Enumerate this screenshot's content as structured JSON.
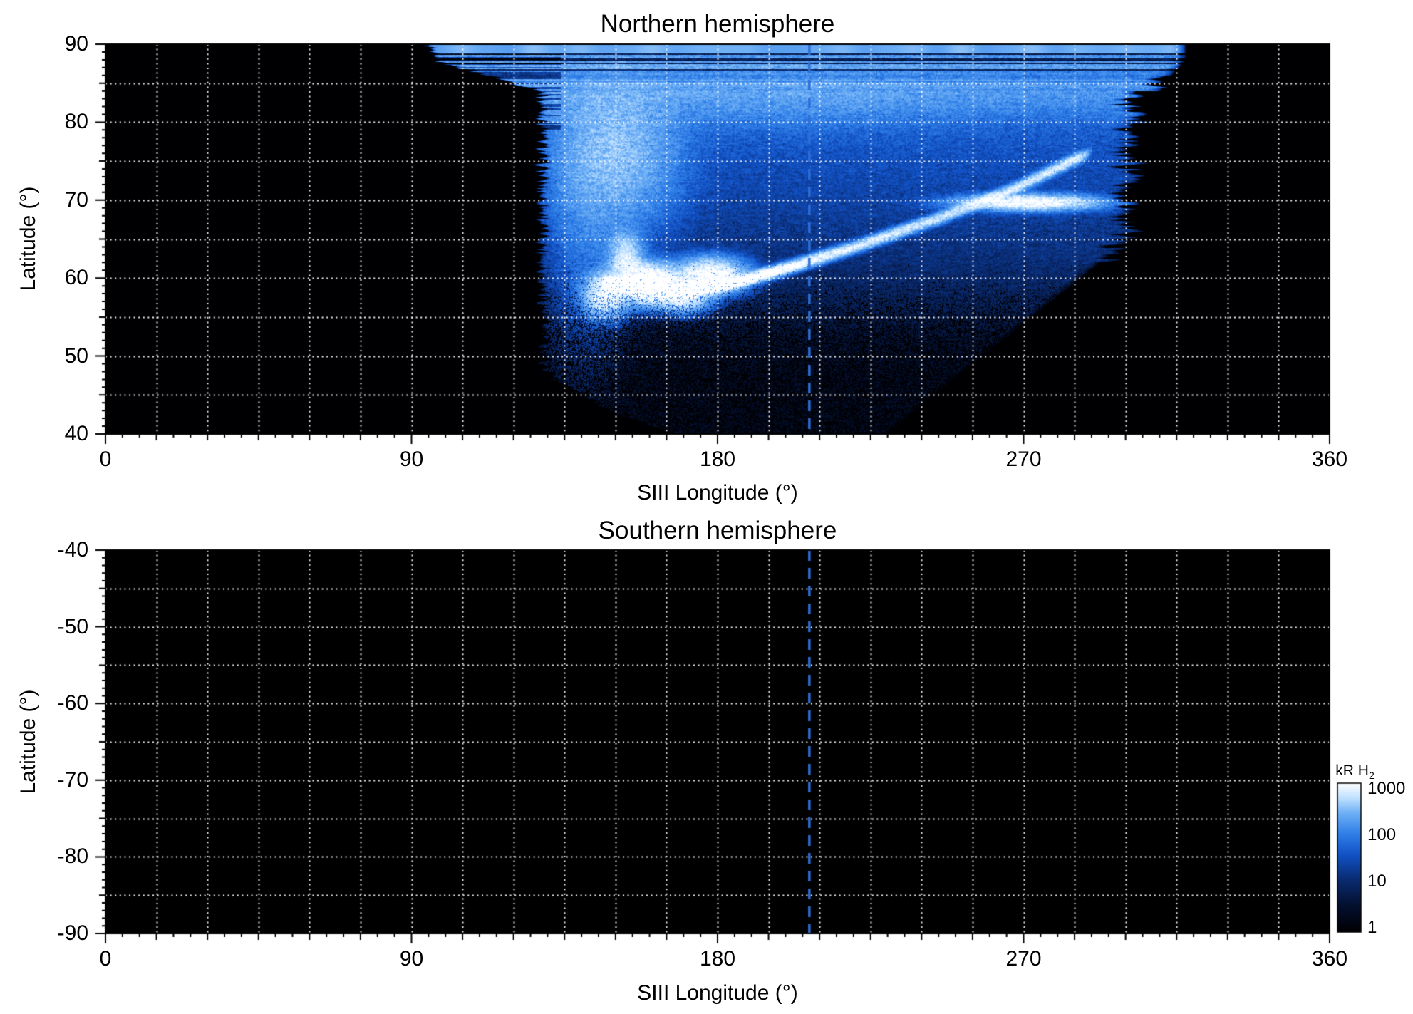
{
  "figure": {
    "bg": "#ffffff",
    "panel_bg": "#000000",
    "grid_color": "rgba(255,255,255,0.95)",
    "dashed_line_color": "#2e6fd8",
    "text_color": "#000000"
  },
  "colorbar": {
    "title_main": "kR H",
    "title_sub": "2",
    "tick_labels": [
      "1000",
      "100",
      "10",
      "1"
    ],
    "scale": "log",
    "range_kR": [
      1,
      1000
    ]
  },
  "colormap": [
    [
      0.0,
      "#000003"
    ],
    [
      0.18,
      "#04102f"
    ],
    [
      0.36,
      "#0a2d76"
    ],
    [
      0.52,
      "#1252c6"
    ],
    [
      0.66,
      "#2f7fe8"
    ],
    [
      0.8,
      "#6fb0f6"
    ],
    [
      0.9,
      "#bfe0ff"
    ],
    [
      1.0,
      "#ffffff"
    ]
  ],
  "chart_data": [
    {
      "type": "heatmap",
      "title": "Northern hemisphere",
      "xlabel": "SIII Longitude (°)",
      "ylabel": "Latitude (°)",
      "xlim": [
        0,
        360
      ],
      "ylim": [
        40,
        90
      ],
      "xticks": [
        0,
        90,
        180,
        270,
        360
      ],
      "yticks": [
        90,
        80,
        70,
        60,
        50,
        40
      ],
      "grid": {
        "x_step_deg": 15,
        "y_step_deg": 5,
        "style": "dotted-white"
      },
      "dashed_line_x": 207,
      "units": "kR H2 (log scale, 1 to 1000)",
      "coverage": {
        "left_lon": 128,
        "right_lon": 302,
        "left_curve_start_lat": 49,
        "left_curve_k": 1.4,
        "right_curve_start_lat": 65,
        "right_curve_slope": 2.8,
        "top_flare_lat": 84,
        "top_flare_slope": 8,
        "right_top_flare_slope": 2,
        "lon_top_range": [
          95,
          318
        ]
      },
      "features": {
        "background_kR": [
          2.2,
          60
        ],
        "polar_band": [
          84.5,
          3.5,
          95
        ],
        "glows": [
          [
            150,
            76,
            280,
            15,
            8
          ],
          [
            141,
            66,
            55,
            9,
            12
          ],
          [
            205,
            83.5,
            55,
            45,
            4
          ]
        ],
        "main_arc": [
          [
            146,
            59.6
          ],
          [
            156,
            58.6
          ],
          [
            166,
            58.2
          ],
          [
            180,
            58.8
          ],
          [
            200,
            61.2
          ],
          [
            222,
            64.2
          ],
          [
            246,
            67.8
          ],
          [
            268,
            71.6
          ],
          [
            290,
            76.2
          ]
        ],
        "bright_spots": [
          [
            160,
            59.2,
            1900,
            7,
            1.9
          ],
          [
            147,
            57.8,
            900,
            5,
            2.2
          ],
          [
            178,
            60.3,
            1100,
            8,
            1.7
          ],
          [
            153,
            62.3,
            650,
            4,
            2.6
          ],
          [
            170,
            57.6,
            800,
            6,
            1.5
          ]
        ],
        "secondary_arc": [
          272,
          69.7,
          950,
          16,
          0.8
        ]
      }
    },
    {
      "type": "heatmap",
      "title": "Southern hemisphere",
      "xlabel": "SIII Longitude (°)",
      "ylabel": "Latitude (°)",
      "xlim": [
        0,
        360
      ],
      "ylim": [
        -90,
        -40
      ],
      "xticks": [
        0,
        90,
        180,
        270,
        360
      ],
      "yticks": [
        -40,
        -50,
        -60,
        -70,
        -80,
        -90
      ],
      "grid": {
        "x_step_deg": 15,
        "y_step_deg": 5,
        "style": "dotted-white"
      },
      "dashed_line_x": 207,
      "coverage": null
    }
  ]
}
